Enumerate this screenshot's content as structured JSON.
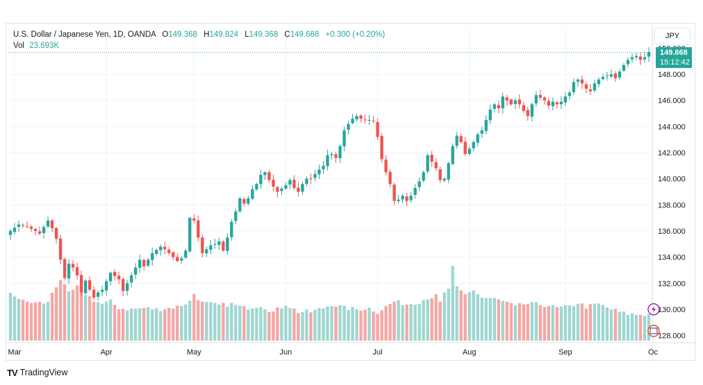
{
  "legend": {
    "symbol": "U.S. Dollar / Japanese Yen, 1D, OANDA",
    "open_label": "O",
    "open": "149.368",
    "high_label": "H",
    "high": "149.824",
    "low_label": "L",
    "low": "149.368",
    "close_label": "C",
    "close": "149.668",
    "change": "+0.300 (+0.20%)",
    "vol_label": "Vol",
    "vol_value": "23.693K"
  },
  "currency_button": "JPY",
  "last_price": {
    "price": "149.668",
    "countdown": "15:12:42"
  },
  "footer": {
    "logo": "TV",
    "brand": "TradingView"
  },
  "colors": {
    "up": "#26a69a",
    "down": "#ef5350",
    "up_volume": "#9fd6d1",
    "down_volume": "#f5a6a4",
    "grid": "#f0f3fa",
    "axis_text": "#131722"
  },
  "chart_data": {
    "type": "candlestick",
    "ylim": [
      127.5,
      150.5
    ],
    "y_ticks": [
      "128.000",
      "130.000",
      "132.000",
      "134.000",
      "136.000",
      "138.000",
      "140.000",
      "142.000",
      "144.000",
      "146.000",
      "148.000",
      "150.000"
    ],
    "x_labels": [
      {
        "label": "Mar",
        "index": 1
      },
      {
        "label": "Apr",
        "index": 23
      },
      {
        "label": "May",
        "index": 44
      },
      {
        "label": "Jun",
        "index": 66
      },
      {
        "label": "Jul",
        "index": 88
      },
      {
        "label": "Aug",
        "index": 110
      },
      {
        "label": "Sep",
        "index": 133
      },
      {
        "label": "Oc",
        "index": 154
      }
    ],
    "anchors": [
      [
        0,
        136.0
      ],
      [
        2,
        136.5
      ],
      [
        4,
        136.3
      ],
      [
        6,
        136.0
      ],
      [
        7,
        135.8
      ],
      [
        9,
        136.8
      ],
      [
        10,
        136.2
      ],
      [
        11,
        135.4
      ],
      [
        12,
        133.8
      ],
      [
        13,
        132.4
      ],
      [
        14,
        133.5
      ],
      [
        15,
        133.2
      ],
      [
        16,
        132.6
      ],
      [
        17,
        131.3
      ],
      [
        18,
        132.2
      ],
      [
        19,
        131.5
      ],
      [
        20,
        130.9
      ],
      [
        21,
        131.3
      ],
      [
        22,
        131.5
      ],
      [
        24,
        132.8
      ],
      [
        26,
        132.3
      ],
      [
        27,
        131.4
      ],
      [
        28,
        132.0
      ],
      [
        30,
        133.2
      ],
      [
        31,
        133.8
      ],
      [
        32,
        133.3
      ],
      [
        34,
        134.3
      ],
      [
        36,
        134.8
      ],
      [
        37,
        134.6
      ],
      [
        39,
        134.0
      ],
      [
        40,
        133.7
      ],
      [
        41,
        133.9
      ],
      [
        42,
        134.5
      ],
      [
        43,
        137.0
      ],
      [
        44,
        136.8
      ],
      [
        45,
        135.5
      ],
      [
        46,
        134.3
      ],
      [
        48,
        134.9
      ],
      [
        49,
        135.0
      ],
      [
        50,
        135.2
      ],
      [
        51,
        134.5
      ],
      [
        52,
        135.5
      ],
      [
        53,
        136.7
      ],
      [
        54,
        137.5
      ],
      [
        55,
        138.5
      ],
      [
        56,
        138.1
      ],
      [
        57,
        138.5
      ],
      [
        58,
        139.2
      ],
      [
        59,
        139.6
      ],
      [
        60,
        140.3
      ],
      [
        61,
        140.5
      ],
      [
        62,
        139.9
      ],
      [
        63,
        139.4
      ],
      [
        64,
        139.0
      ],
      [
        66,
        139.5
      ],
      [
        67,
        139.9
      ],
      [
        68,
        139.3
      ],
      [
        69,
        139.0
      ],
      [
        70,
        139.6
      ],
      [
        71,
        140.0
      ],
      [
        72,
        140.0
      ],
      [
        74,
        140.7
      ],
      [
        75,
        141.0
      ],
      [
        76,
        141.8
      ],
      [
        77,
        141.9
      ],
      [
        78,
        141.6
      ],
      [
        79,
        142.5
      ],
      [
        80,
        143.7
      ],
      [
        81,
        144.2
      ],
      [
        82,
        144.6
      ],
      [
        83,
        144.8
      ],
      [
        84,
        144.6
      ],
      [
        85,
        144.5
      ],
      [
        86,
        144.5
      ],
      [
        87,
        144.4
      ],
      [
        88,
        143.2
      ],
      [
        89,
        141.5
      ],
      [
        90,
        140.5
      ],
      [
        91,
        139.6
      ],
      [
        92,
        138.3
      ],
      [
        93,
        138.4
      ],
      [
        94,
        138.7
      ],
      [
        95,
        138.3
      ],
      [
        96,
        138.7
      ],
      [
        97,
        139.3
      ],
      [
        98,
        139.8
      ],
      [
        99,
        140.5
      ],
      [
        100,
        141.8
      ],
      [
        101,
        141.3
      ],
      [
        102,
        140.8
      ],
      [
        103,
        139.9
      ],
      [
        104,
        140.0
      ],
      [
        105,
        141.2
      ],
      [
        106,
        142.5
      ],
      [
        107,
        143.3
      ],
      [
        108,
        142.8
      ],
      [
        109,
        141.9
      ],
      [
        110,
        142.3
      ],
      [
        111,
        142.8
      ],
      [
        112,
        143.4
      ],
      [
        113,
        143.7
      ],
      [
        114,
        144.5
      ],
      [
        115,
        145.3
      ],
      [
        116,
        145.7
      ],
      [
        117,
        145.4
      ],
      [
        118,
        146.3
      ],
      [
        119,
        146.0
      ],
      [
        120,
        145.7
      ],
      [
        121,
        146.0
      ],
      [
        122,
        145.7
      ],
      [
        123,
        145.2
      ],
      [
        124,
        144.8
      ],
      [
        125,
        145.7
      ],
      [
        126,
        146.4
      ],
      [
        127,
        146.2
      ],
      [
        128,
        146.0
      ],
      [
        129,
        145.6
      ],
      [
        130,
        145.9
      ],
      [
        131,
        145.7
      ],
      [
        132,
        145.9
      ],
      [
        133,
        146.3
      ],
      [
        134,
        146.6
      ],
      [
        135,
        147.4
      ],
      [
        136,
        147.6
      ],
      [
        137,
        147.3
      ],
      [
        138,
        146.9
      ],
      [
        139,
        146.7
      ],
      [
        140,
        147.3
      ],
      [
        141,
        147.6
      ],
      [
        142,
        147.8
      ],
      [
        143,
        147.9
      ],
      [
        144,
        148.0
      ],
      [
        145,
        147.7
      ],
      [
        146,
        148.2
      ],
      [
        147,
        148.7
      ],
      [
        148,
        149.1
      ],
      [
        149,
        149.3
      ],
      [
        150,
        149.4
      ],
      [
        151,
        149.1
      ],
      [
        152,
        149.3
      ],
      [
        153,
        149.7
      ]
    ],
    "volume_anchors": [
      [
        0,
        131.3
      ],
      [
        3,
        130.6
      ],
      [
        6,
        130.5
      ],
      [
        9,
        130.5
      ],
      [
        10,
        131.3
      ],
      [
        12,
        132.3
      ],
      [
        14,
        131.2
      ],
      [
        16,
        131.7
      ],
      [
        18,
        131.2
      ],
      [
        20,
        130.7
      ],
      [
        22,
        130.4
      ],
      [
        24,
        130.6
      ],
      [
        26,
        130.1
      ],
      [
        29,
        130.0
      ],
      [
        32,
        130.1
      ],
      [
        35,
        130.0
      ],
      [
        38,
        130.1
      ],
      [
        40,
        130.2
      ],
      [
        43,
        130.6
      ],
      [
        44,
        131.2
      ],
      [
        46,
        130.5
      ],
      [
        50,
        130.3
      ],
      [
        53,
        130.4
      ],
      [
        56,
        130.1
      ],
      [
        60,
        130.3
      ],
      [
        63,
        129.8
      ],
      [
        66,
        130.4
      ],
      [
        69,
        129.8
      ],
      [
        72,
        129.8
      ],
      [
        75,
        130.1
      ],
      [
        77,
        130.4
      ],
      [
        80,
        130.1
      ],
      [
        83,
        130.0
      ],
      [
        86,
        130.1
      ],
      [
        88,
        129.8
      ],
      [
        90,
        130.2
      ],
      [
        92,
        130.6
      ],
      [
        95,
        130.4
      ],
      [
        98,
        130.6
      ],
      [
        100,
        130.9
      ],
      [
        102,
        131.0
      ],
      [
        103,
        130.5
      ],
      [
        104,
        131.2
      ],
      [
        105,
        131.6
      ],
      [
        106,
        133.2
      ],
      [
        107,
        131.6
      ],
      [
        109,
        131.1
      ],
      [
        111,
        131.5
      ],
      [
        113,
        130.9
      ],
      [
        116,
        130.8
      ],
      [
        119,
        130.5
      ],
      [
        121,
        130.2
      ],
      [
        123,
        130.4
      ],
      [
        126,
        130.4
      ],
      [
        129,
        130.3
      ],
      [
        131,
        130.1
      ],
      [
        134,
        130.2
      ],
      [
        136,
        130.5
      ],
      [
        138,
        130.2
      ],
      [
        141,
        130.4
      ],
      [
        144,
        130.0
      ],
      [
        147,
        129.7
      ],
      [
        150,
        129.6
      ],
      [
        153,
        129.6
      ]
    ],
    "volume_base": 127.6,
    "last_index": 153
  }
}
